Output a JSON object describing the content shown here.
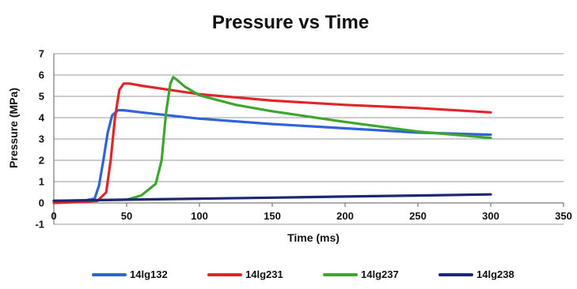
{
  "chart_data": {
    "type": "line",
    "title": "Pressure vs Time",
    "xlabel": "Time (ms)",
    "ylabel": "Pressure (MPa)",
    "xlim": [
      0,
      350
    ],
    "ylim": [
      -1,
      7
    ],
    "xticks": [
      0,
      50,
      100,
      150,
      200,
      250,
      300,
      350
    ],
    "yticks": [
      -1,
      0,
      1,
      2,
      3,
      4,
      5,
      6,
      7
    ],
    "grid": true,
    "legend_position": "bottom",
    "series": [
      {
        "name": "14lg132",
        "color": "#2f63d6",
        "x": [
          0,
          20,
          28,
          31,
          34,
          37,
          40,
          44,
          48,
          60,
          80,
          100,
          150,
          200,
          250,
          300
        ],
        "y": [
          0.1,
          0.1,
          0.2,
          0.8,
          2.0,
          3.3,
          4.1,
          4.35,
          4.35,
          4.25,
          4.1,
          3.95,
          3.7,
          3.5,
          3.3,
          3.2
        ]
      },
      {
        "name": "14lg231",
        "color": "#e0262b",
        "x": [
          0,
          20,
          30,
          36,
          39,
          42,
          45,
          48,
          52,
          60,
          80,
          100,
          150,
          200,
          250,
          300
        ],
        "y": [
          0.0,
          0.05,
          0.1,
          0.5,
          2.0,
          4.0,
          5.3,
          5.6,
          5.6,
          5.5,
          5.3,
          5.1,
          4.8,
          4.6,
          4.45,
          4.25
        ]
      },
      {
        "name": "14lg237",
        "color": "#3ea52e",
        "x": [
          0,
          50,
          60,
          70,
          74,
          77,
          80,
          82,
          84,
          90,
          100,
          125,
          150,
          200,
          250,
          300
        ],
        "y": [
          0.1,
          0.15,
          0.35,
          0.9,
          2.0,
          4.2,
          5.6,
          5.9,
          5.8,
          5.45,
          5.05,
          4.6,
          4.3,
          3.8,
          3.35,
          3.05
        ]
      },
      {
        "name": "14lg238",
        "color": "#1c2872",
        "x": [
          0,
          50,
          100,
          150,
          200,
          250,
          300
        ],
        "y": [
          0.1,
          0.15,
          0.2,
          0.25,
          0.3,
          0.35,
          0.4
        ]
      }
    ]
  }
}
